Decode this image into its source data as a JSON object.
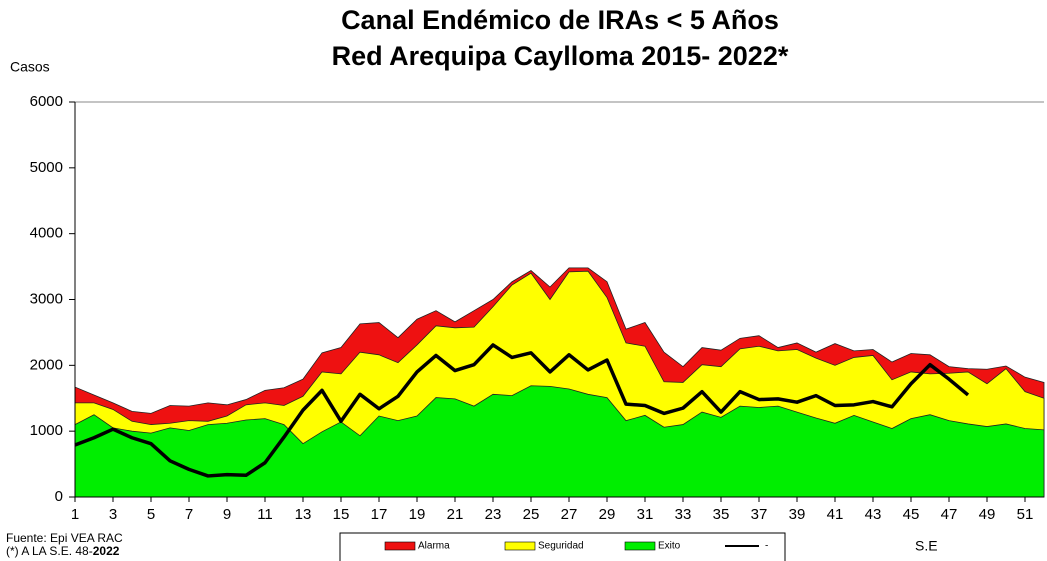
{
  "chart_data": {
    "type": "area",
    "title": "Canal Endémico de IRAs < 5 Años",
    "subtitle": "Red Arequipa Caylloma 2015- 2022*",
    "y_label": "Casos",
    "x_label": "S.E",
    "source": "Fuente:  Epi VEA RAC",
    "note": "(*) A LA S.E. 48-",
    "note_bold": "2022",
    "x": [
      1,
      2,
      3,
      4,
      5,
      6,
      7,
      8,
      9,
      10,
      11,
      12,
      13,
      14,
      15,
      16,
      17,
      18,
      19,
      20,
      21,
      22,
      23,
      24,
      25,
      26,
      27,
      28,
      29,
      30,
      31,
      32,
      33,
      34,
      35,
      36,
      37,
      38,
      39,
      40,
      41,
      42,
      43,
      44,
      45,
      46,
      47,
      48,
      49,
      50,
      51,
      52
    ],
    "xlim": [
      1,
      52
    ],
    "xticks": [
      1,
      3,
      5,
      7,
      9,
      11,
      13,
      15,
      17,
      19,
      21,
      23,
      25,
      27,
      29,
      31,
      33,
      35,
      37,
      39,
      41,
      43,
      45,
      47,
      49,
      51
    ],
    "ylim": [
      0,
      6000
    ],
    "yticks": [
      0,
      1000,
      2000,
      3000,
      4000,
      5000,
      6000
    ],
    "grid": false,
    "series": [
      {
        "name": "Alarma",
        "color": "#ee1111",
        "kind": "area",
        "values": [
          1670,
          1550,
          1430,
          1300,
          1270,
          1390,
          1380,
          1430,
          1400,
          1480,
          1620,
          1660,
          1790,
          2190,
          2270,
          2630,
          2650,
          2420,
          2700,
          2830,
          2660,
          2830,
          3000,
          3270,
          3440,
          3190,
          3480,
          3480,
          3270,
          2550,
          2650,
          2200,
          1980,
          2270,
          2230,
          2410,
          2450,
          2270,
          2340,
          2200,
          2330,
          2220,
          2240,
          2050,
          2180,
          2160,
          1980,
          1950,
          1940,
          1990,
          1820,
          1740
        ]
      },
      {
        "name": "Seguridad",
        "color": "#ffff00",
        "kind": "area",
        "values": [
          1430,
          1430,
          1330,
          1150,
          1100,
          1120,
          1160,
          1150,
          1230,
          1400,
          1430,
          1390,
          1530,
          1900,
          1870,
          2200,
          2160,
          2040,
          2310,
          2600,
          2570,
          2580,
          2890,
          3220,
          3400,
          3000,
          3420,
          3430,
          3030,
          2340,
          2290,
          1750,
          1740,
          2010,
          1980,
          2250,
          2290,
          2220,
          2240,
          2110,
          2000,
          2120,
          2150,
          1780,
          1900,
          1870,
          1880,
          1900,
          1720,
          1950,
          1600,
          1500
        ]
      },
      {
        "name": "Exito",
        "color": "#00ee00",
        "kind": "area",
        "values": [
          1100,
          1250,
          1050,
          1000,
          970,
          1050,
          1010,
          1100,
          1120,
          1170,
          1190,
          1100,
          810,
          990,
          1140,
          930,
          1230,
          1160,
          1230,
          1510,
          1490,
          1380,
          1560,
          1540,
          1690,
          1680,
          1640,
          1560,
          1510,
          1160,
          1240,
          1060,
          1100,
          1290,
          1210,
          1380,
          1360,
          1380,
          1290,
          1200,
          1120,
          1240,
          1140,
          1040,
          1190,
          1250,
          1160,
          1110,
          1070,
          1110,
          1040,
          1020
        ]
      },
      {
        "name": "-",
        "color": "#000000",
        "kind": "line",
        "values": [
          790,
          900,
          1030,
          900,
          810,
          550,
          420,
          320,
          340,
          330,
          520,
          910,
          1320,
          1620,
          1150,
          1560,
          1340,
          1530,
          1900,
          2150,
          1920,
          2010,
          2310,
          2120,
          2190,
          1900,
          2160,
          1930,
          2080,
          1410,
          1390,
          1270,
          1350,
          1600,
          1290,
          1600,
          1480,
          1490,
          1440,
          1540,
          1390,
          1400,
          1450,
          1370,
          1720,
          2010,
          1790,
          1550,
          null,
          null,
          null,
          null
        ]
      }
    ]
  }
}
